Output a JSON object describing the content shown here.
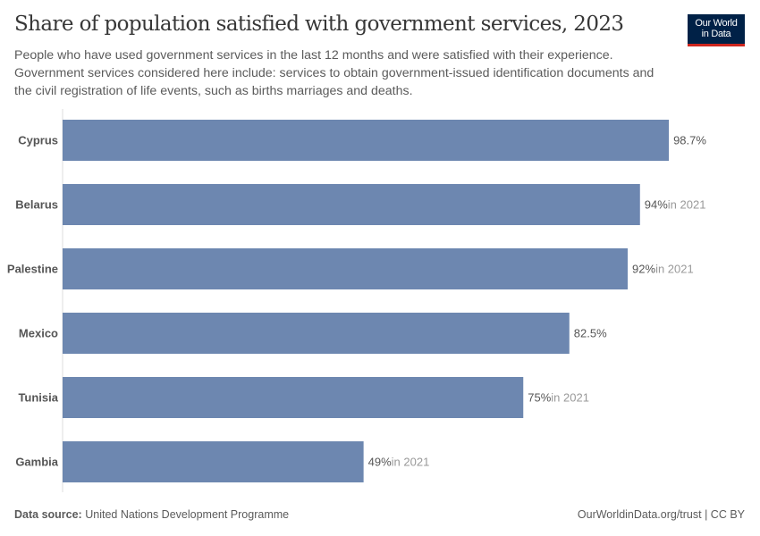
{
  "title": "Share of population satisfied with government services, 2023",
  "subtitle": "People who have used government services in the last 12 months and were satisfied with their experience. Government services considered here include: services to obtain government-issued identification documents and the civil registration of life events, such as births marriages and deaths.",
  "logo": {
    "line1": "Our World",
    "line2": "in Data",
    "bg": "#002147",
    "accent": "#ce261e"
  },
  "footer": {
    "source_label": "Data source:",
    "source": "United Nations Development Programme",
    "license": "OurWorldinData.org/trust | CC BY"
  },
  "chart_data": {
    "type": "bar",
    "orientation": "horizontal",
    "categories": [
      "Cyprus",
      "Belarus",
      "Palestine",
      "Mexico",
      "Tunisia",
      "Gambia"
    ],
    "values": [
      98.7,
      94,
      92,
      82.5,
      75,
      49
    ],
    "value_labels": [
      "98.7%",
      "94%",
      "92%",
      "82.5%",
      "75%",
      "49%"
    ],
    "year_notes": [
      "",
      "in 2021",
      "in 2021",
      "",
      "in 2021",
      "in 2021"
    ],
    "unit": "%",
    "xlim": [
      0,
      100
    ],
    "grid": false,
    "bar_color": "#6d87b0"
  }
}
